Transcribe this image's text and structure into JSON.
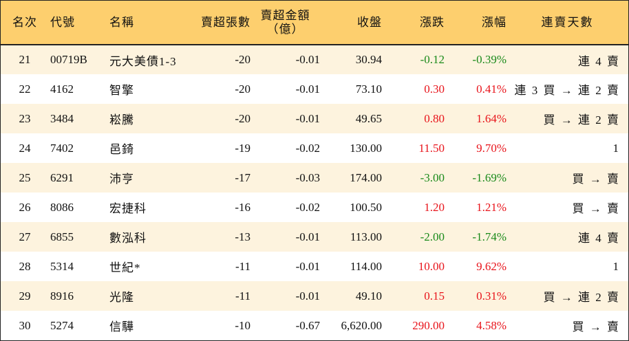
{
  "columns": {
    "rank": "名次",
    "code": "代號",
    "name": "名稱",
    "oversell_shares": "賣超張數",
    "oversell_amount_line1": "賣超金額",
    "oversell_amount_line2": "（億）",
    "close": "收盤",
    "change": "漲跌",
    "change_pct": "漲幅",
    "consecutive_days": "連賣天數"
  },
  "colors": {
    "header_bg": "#fdcf6e",
    "row_odd_bg": "#fdf3de",
    "up": "#e8141b",
    "down": "#1a8a1a"
  },
  "rows": [
    {
      "rank": "21",
      "code": "00719B",
      "name": "元大美債1-3",
      "shares": "-20",
      "amount": "-0.01",
      "close": "30.94",
      "change": "-0.12",
      "pct": "-0.39%",
      "days": "連 4 賣",
      "trend": "neg"
    },
    {
      "rank": "22",
      "code": "4162",
      "name": "智擎",
      "shares": "-20",
      "amount": "-0.01",
      "close": "73.10",
      "change": "0.30",
      "pct": "0.41%",
      "days": "連 3 買 → 連 2 賣",
      "trend": "pos"
    },
    {
      "rank": "23",
      "code": "3484",
      "name": "崧騰",
      "shares": "-20",
      "amount": "-0.01",
      "close": "49.65",
      "change": "0.80",
      "pct": "1.64%",
      "days": "買 → 連 2 賣",
      "trend": "pos"
    },
    {
      "rank": "24",
      "code": "7402",
      "name": "邑錡",
      "shares": "-19",
      "amount": "-0.02",
      "close": "130.00",
      "change": "11.50",
      "pct": "9.70%",
      "days": "1",
      "trend": "pos"
    },
    {
      "rank": "25",
      "code": "6291",
      "name": "沛亨",
      "shares": "-17",
      "amount": "-0.03",
      "close": "174.00",
      "change": "-3.00",
      "pct": "-1.69%",
      "days": "買 → 賣",
      "trend": "neg"
    },
    {
      "rank": "26",
      "code": "8086",
      "name": "宏捷科",
      "shares": "-16",
      "amount": "-0.02",
      "close": "100.50",
      "change": "1.20",
      "pct": "1.21%",
      "days": "買 → 賣",
      "trend": "pos"
    },
    {
      "rank": "27",
      "code": "6855",
      "name": "數泓科",
      "shares": "-13",
      "amount": "-0.01",
      "close": "113.00",
      "change": "-2.00",
      "pct": "-1.74%",
      "days": "連 4 賣",
      "trend": "neg"
    },
    {
      "rank": "28",
      "code": "5314",
      "name": "世紀*",
      "shares": "-11",
      "amount": "-0.01",
      "close": "114.00",
      "change": "10.00",
      "pct": "9.62%",
      "days": "1",
      "trend": "pos"
    },
    {
      "rank": "29",
      "code": "8916",
      "name": "光隆",
      "shares": "-11",
      "amount": "-0.01",
      "close": "49.10",
      "change": "0.15",
      "pct": "0.31%",
      "days": "買 → 連 2 賣",
      "trend": "pos"
    },
    {
      "rank": "30",
      "code": "5274",
      "name": "信驊",
      "shares": "-10",
      "amount": "-0.67",
      "close": "6,620.00",
      "change": "290.00",
      "pct": "4.58%",
      "days": "買 → 賣",
      "trend": "pos"
    }
  ]
}
